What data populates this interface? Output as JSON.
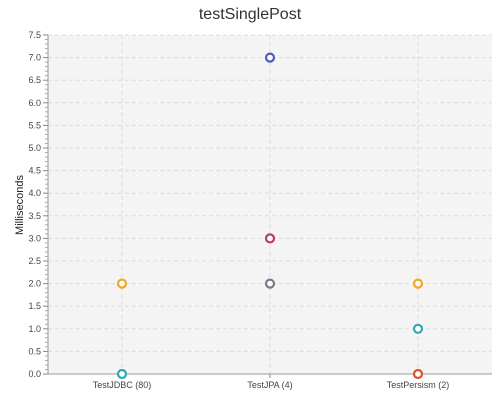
{
  "chart_data": {
    "type": "scatter",
    "title": "testSinglePost",
    "xlabel": "",
    "ylabel": "Milliseconds",
    "categories": [
      "TestJDBC (80)",
      "TestJPA (4)",
      "TestPersism (2)"
    ],
    "ylim": [
      0,
      7.5
    ],
    "y_tick_step": 0.5,
    "grid": true,
    "legend": "none",
    "series": [
      {
        "color": "#f5a623",
        "values": [
          2.0,
          null,
          2.0
        ]
      },
      {
        "color": "#2fa8b0",
        "values": [
          0.0,
          null,
          1.0
        ]
      },
      {
        "color": "#4a5cc4",
        "values": [
          null,
          7.0,
          null
        ]
      },
      {
        "color": "#c0395a",
        "values": [
          null,
          3.0,
          null
        ]
      },
      {
        "color": "#7a7a8c",
        "values": [
          null,
          2.0,
          null
        ]
      },
      {
        "color": "#e0522a",
        "values": [
          null,
          null,
          0.0
        ]
      }
    ]
  }
}
